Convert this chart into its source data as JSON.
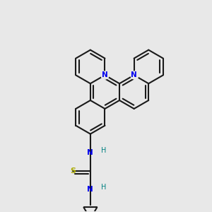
{
  "background_color": "#e8e8e8",
  "bond_color": "#1a1a1a",
  "nitrogen_color": "#0000ee",
  "sulfur_color": "#aaaa00",
  "hydrogen_color": "#008080",
  "lw": 1.5,
  "figsize": [
    3.0,
    3.0
  ],
  "dpi": 100,
  "xlim": [
    -0.5,
    0.5
  ],
  "ylim": [
    -0.55,
    0.55
  ]
}
